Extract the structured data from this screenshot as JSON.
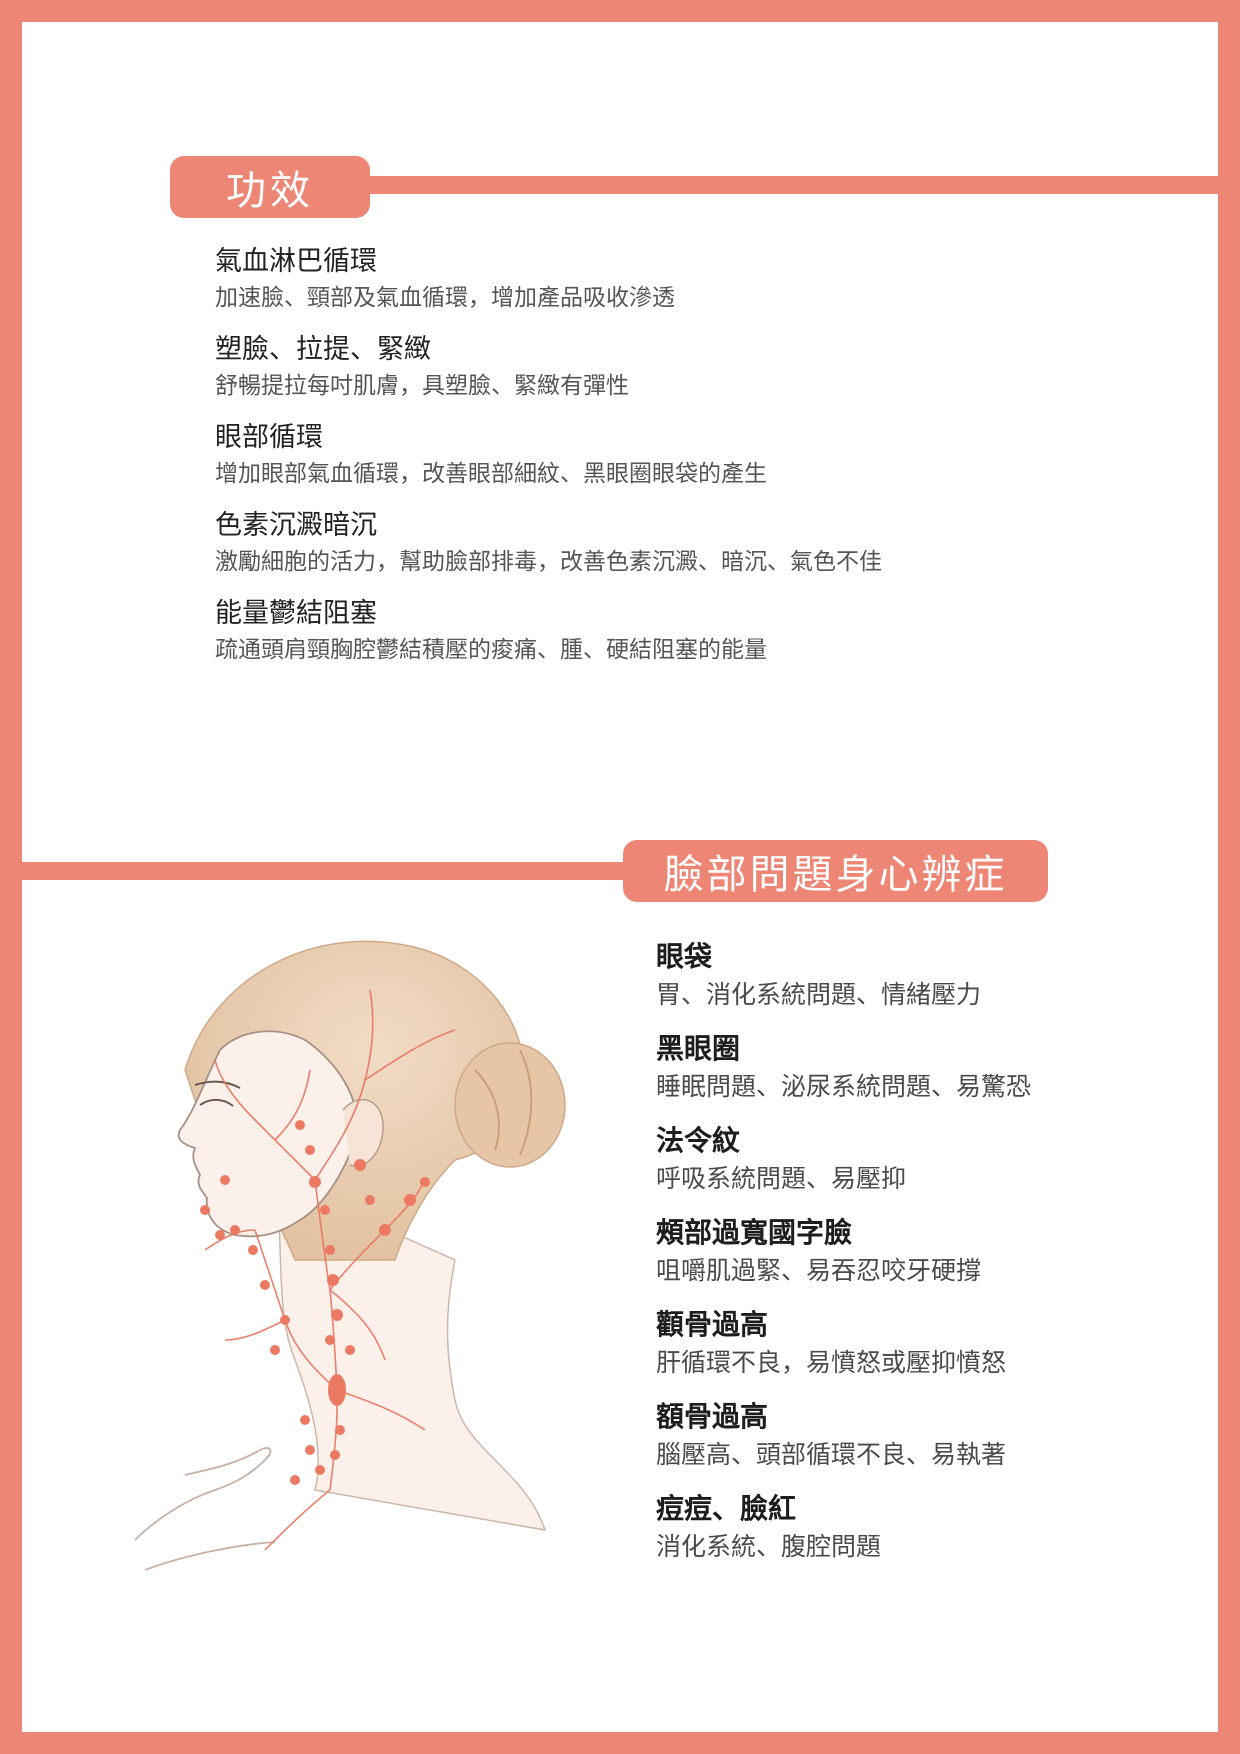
{
  "colors": {
    "accent": "#EE8675",
    "background": "#ffffff",
    "vessel": "#e8745e"
  },
  "section1": {
    "heading": "功效",
    "items": [
      {
        "title": "氣血淋巴循環",
        "desc": "加速臉、頸部及氣血循環，增加產品吸收滲透"
      },
      {
        "title": "塑臉、拉提、緊緻",
        "desc": "舒暢提拉每吋肌膚，具塑臉、緊緻有彈性"
      },
      {
        "title": "眼部循環",
        "desc": "增加眼部氣血循環，改善眼部細紋、黑眼圈眼袋的產生"
      },
      {
        "title": "色素沉澱暗沉",
        "desc": "激勵細胞的活力，幫助臉部排毒，改善色素沉澱、暗沉、氣色不佳"
      },
      {
        "title": "能量鬱結阻塞",
        "desc": "疏通頭肩頸胸腔鬱結積壓的痠痛、腫、硬結阻塞的能量"
      }
    ]
  },
  "section2": {
    "heading": "臉部問題身心辨症",
    "items": [
      {
        "title": "眼袋",
        "desc": "胃、消化系統問題、情緒壓力"
      },
      {
        "title": "黑眼圈",
        "desc": "睡眠問題、泌尿系統問題、易驚恐"
      },
      {
        "title": "法令紋",
        "desc": "呼吸系統問題、易壓抑"
      },
      {
        "title": "頰部過寬國字臉",
        "desc": "咀嚼肌過緊、易吞忍咬牙硬撐"
      },
      {
        "title": "顴骨過高",
        "desc": "肝循環不良，易憤怒或壓抑憤怒"
      },
      {
        "title": "額骨過高",
        "desc": "腦壓高、頭部循環不良、易執著"
      },
      {
        "title": "痘痘、臉紅",
        "desc": "消化系統、腹腔問題"
      }
    ]
  },
  "illustration": {
    "icon": "lymph-head-illustration"
  }
}
